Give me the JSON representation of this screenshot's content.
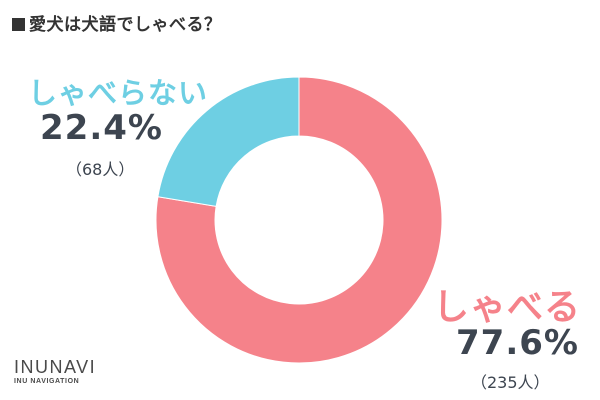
{
  "title": "愛犬は犬語でしゃべる？",
  "colors": {
    "speaks": "#f5828a",
    "not_speaks": "#6ecfe3",
    "text_dark": "#3d4550"
  },
  "logo": {
    "wordmark": "INUNAVI",
    "subtitle": "INU NAVIGATION"
  },
  "chart_data": {
    "type": "pie",
    "variant": "donut",
    "categories": [
      "しゃべる",
      "しゃべらない"
    ],
    "values": [
      77.6,
      22.4
    ],
    "counts": [
      235,
      68
    ],
    "percent_labels": [
      "77.6%",
      "22.4%"
    ],
    "count_labels": [
      "（235人）",
      "（68人）"
    ],
    "title": "愛犬は犬語でしゃべる？"
  }
}
